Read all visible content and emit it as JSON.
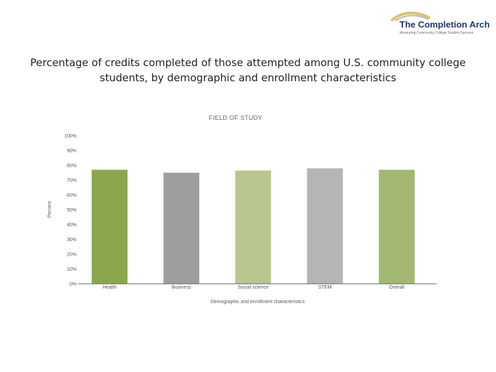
{
  "header": {
    "logo_title": "The Completion Arch",
    "logo_subtitle": "Measuring Community College Student Success",
    "slide_title": "Percentage of credits completed of those attempted among U.S. community college students, by demographic and enrollment characteristics"
  },
  "colors": {
    "Health": "#8aa84b",
    "Business": "#9e9e9e",
    "Social science": "#b8c78d",
    "STEM": "#b5b5b5",
    "Overall": "#a2b870"
  },
  "chart_data": {
    "type": "bar",
    "title": "FIELD OF STUDY",
    "xlabel": "Demographic and enrollment characteristics",
    "ylabel": "Percent",
    "categories": [
      "Health",
      "Business",
      "Social science",
      "STEM",
      "Overall"
    ],
    "values": [
      77,
      75,
      76.5,
      78,
      77
    ],
    "ylim": [
      0,
      100
    ],
    "yticks": [
      0,
      10,
      20,
      30,
      40,
      50,
      60,
      70,
      80,
      90,
      100
    ],
    "ytick_labels": [
      "0%",
      "10%",
      "20%",
      "30%",
      "40%",
      "50%",
      "60%",
      "70%",
      "80%",
      "90%",
      "100%"
    ],
    "grid": false,
    "legend": "none"
  }
}
